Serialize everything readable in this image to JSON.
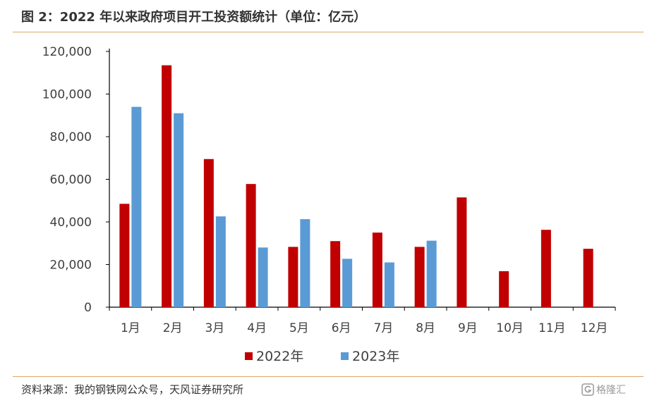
{
  "header": {
    "title": "图 2：2022 年以来政府项目开工投资额统计（单位：亿元）"
  },
  "footer": {
    "source": "资料来源：我的钢铁网公众号，天风证券研究所",
    "watermark_text": "格隆汇",
    "watermark_icon": "g-logo-icon"
  },
  "colors": {
    "series_2022": "#c00000",
    "series_2023": "#5b9bd5",
    "axis": "#000000",
    "rule": "#d9a866"
  },
  "chart_data": {
    "type": "bar",
    "title": "图 2：2022 年以来政府项目开工投资额统计（单位：亿元）",
    "categories": [
      "1月",
      "2月",
      "3月",
      "4月",
      "5月",
      "6月",
      "7月",
      "8月",
      "9月",
      "10月",
      "11月",
      "12月"
    ],
    "series": [
      {
        "name": "2022年",
        "color": "#c00000",
        "values": [
          48500,
          113500,
          69500,
          57800,
          28300,
          31000,
          35000,
          28300,
          51500,
          16900,
          36300,
          27400
        ]
      },
      {
        "name": "2023年",
        "color": "#5b9bd5",
        "values": [
          94000,
          91000,
          42600,
          28000,
          41300,
          22700,
          21000,
          31200,
          null,
          null,
          null,
          null
        ]
      }
    ],
    "ylim": [
      0,
      120000
    ],
    "yticks": [
      0,
      20000,
      40000,
      60000,
      80000,
      100000,
      120000
    ],
    "ytick_labels": [
      "0",
      "20,000",
      "40,000",
      "60,000",
      "80,000",
      "100,000",
      "120,000"
    ],
    "xlabel": "",
    "ylabel": "",
    "grid": false,
    "legend_position": "bottom"
  }
}
